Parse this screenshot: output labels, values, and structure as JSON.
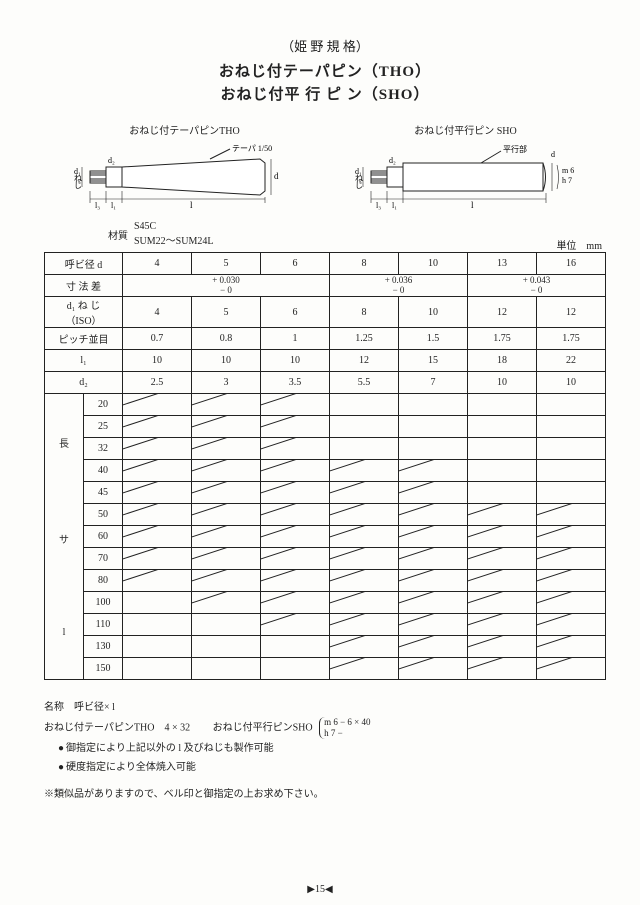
{
  "header": {
    "standard": "（姫 野 規 格）",
    "title1": "おねじ付テーパピン（THO）",
    "title2": "おねじ付平 行 ピ ン（SHO）"
  },
  "diagrams": {
    "left_label": "おねじ付テーパピンTHO",
    "left_note": "テーパ 1/50",
    "right_label": "おねじ付平行ピン SHO",
    "right_note": "平行部",
    "right_tol1": "m 6",
    "right_tol2": "h 7",
    "dim_d1": "d₁",
    "dim_ne": "ね",
    "dim_ji": "じ",
    "dim_l3": "l₃",
    "dim_l1": "l₁",
    "dim_l": "l",
    "dim_d": "d",
    "dim_d2": "d₂"
  },
  "material": {
    "label": "材質",
    "line1": "S45C",
    "line2": "SUM22～SUM24L"
  },
  "unit": "単位　mm",
  "table": {
    "row_headers": {
      "d": "呼ビ径 d",
      "tol": "寸 法 差",
      "d1": "d₁ ね じ\n（ISO）",
      "pitch": "ピッチ並目",
      "l1": "l₁",
      "d2": "d₂",
      "len_group": [
        "長",
        "サ",
        "l"
      ]
    },
    "d": [
      "4",
      "5",
      "6",
      "8",
      "10",
      "13",
      "16"
    ],
    "tol_groups": [
      {
        "span": 3,
        "upper": "+ 0.030",
        "lower": "− 0"
      },
      {
        "span": 2,
        "upper": "+ 0.036",
        "lower": "− 0"
      },
      {
        "span": 2,
        "upper": "+ 0.043",
        "lower": "− 0"
      }
    ],
    "d1": [
      "4",
      "5",
      "6",
      "8",
      "10",
      "12",
      "12"
    ],
    "pitch": [
      "0.7",
      "0.8",
      "1",
      "1.25",
      "1.5",
      "1.75",
      "1.75"
    ],
    "l1": [
      "10",
      "10",
      "10",
      "12",
      "15",
      "18",
      "22"
    ],
    "d2": [
      "2.5",
      "3",
      "3.5",
      "5.5",
      "7",
      "10",
      "10"
    ],
    "lengths": [
      "20",
      "25",
      "32",
      "40",
      "45",
      "50",
      "60",
      "70",
      "80",
      "100",
      "110",
      "130",
      "150"
    ],
    "avail": [
      [
        1,
        1,
        1,
        0,
        0,
        0,
        0
      ],
      [
        1,
        1,
        1,
        0,
        0,
        0,
        0
      ],
      [
        1,
        1,
        1,
        0,
        0,
        0,
        0
      ],
      [
        1,
        1,
        1,
        1,
        1,
        0,
        0
      ],
      [
        1,
        1,
        1,
        1,
        1,
        0,
        0
      ],
      [
        1,
        1,
        1,
        1,
        1,
        1,
        1
      ],
      [
        1,
        1,
        1,
        1,
        1,
        1,
        1
      ],
      [
        1,
        1,
        1,
        1,
        1,
        1,
        1
      ],
      [
        1,
        1,
        1,
        1,
        1,
        1,
        1
      ],
      [
        0,
        1,
        1,
        1,
        1,
        1,
        1
      ],
      [
        0,
        0,
        1,
        1,
        1,
        1,
        1
      ],
      [
        0,
        0,
        0,
        1,
        1,
        1,
        1
      ],
      [
        0,
        0,
        0,
        1,
        1,
        1,
        1
      ]
    ]
  },
  "notes": {
    "n1": "名称　呼ビ径× l",
    "n2a": "おねじ付テーパピンTHO　4 × 32",
    "n2b": "おねじ付平行ピンSHO",
    "n2c1": "m 6 − 6 × 40",
    "n2c2": "h 7 −",
    "b1": "御指定により上記以外の l 及びねじも製作可能",
    "b2": "硬度指定により全体焼入可能",
    "n3": "※類似品がありますので、ベル印と御指定の上お求め下さい。"
  },
  "page": "▶15◀"
}
